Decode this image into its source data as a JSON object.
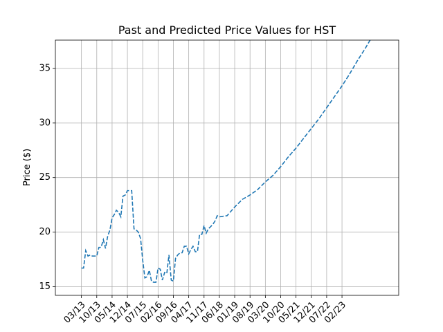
{
  "chart_data": {
    "type": "line",
    "title": "Past and Predicted Price Values for HST",
    "xlabel": "",
    "ylabel": "Price ($)",
    "ylim": [
      14.2,
      37.6
    ],
    "xlim": [
      -1.7,
      20.7
    ],
    "grid": true,
    "legend": "none",
    "line_color": "#1f77b4",
    "line_style": "dashed",
    "x_tick_labels": [
      "03/13",
      "10/13",
      "05/14",
      "12/14",
      "07/15",
      "02/16",
      "09/16",
      "04/17",
      "11/17",
      "06/18",
      "01/19",
      "08/19",
      "03/20",
      "10/20",
      "05/21",
      "12/21",
      "07/22",
      "02/23"
    ],
    "y_ticks": [
      15,
      20,
      25,
      30,
      35
    ],
    "series": [
      {
        "x": [
          0,
          0.14,
          0.28,
          0.43,
          0.57,
          0.71,
          0.86,
          1.0,
          1.14,
          1.28,
          1.43,
          1.57,
          1.71,
          1.86,
          2.0,
          2.14,
          2.28,
          2.43,
          2.57,
          2.71,
          2.86,
          3.0,
          3.14,
          3.28,
          3.43,
          3.57,
          3.71,
          3.86,
          4.0,
          4.14,
          4.28,
          4.43,
          4.57,
          4.71,
          4.86,
          5.0,
          5.14,
          5.28,
          5.43,
          5.57,
          5.71,
          5.86,
          6.0,
          6.14,
          6.28,
          6.43,
          6.57,
          6.71,
          6.86,
          7.0,
          7.14,
          7.28,
          7.43,
          7.57,
          7.71,
          7.86,
          8.0,
          8.14,
          8.28,
          8.43,
          8.57,
          8.71,
          8.86,
          9.0,
          9.5,
          10.0,
          10.5,
          11.0,
          11.5,
          12.0,
          12.5,
          13.0,
          13.5,
          14.0,
          14.5,
          15.0,
          15.5,
          16.0,
          16.5,
          17.0,
          17.5,
          18.0,
          18.5,
          19.0,
          19.5,
          20.0
        ],
        "values": [
          16.7,
          16.7,
          18.3,
          17.8,
          17.9,
          17.8,
          17.8,
          17.8,
          18.6,
          18.6,
          19.3,
          18.5,
          19.6,
          20.2,
          21.3,
          21.6,
          22.0,
          21.8,
          21.4,
          23.3,
          23.4,
          23.8,
          23.8,
          23.8,
          20.3,
          20.2,
          20.0,
          19.4,
          17.4,
          15.8,
          15.9,
          16.5,
          15.5,
          15.4,
          15.4,
          16.7,
          16.6,
          15.6,
          16.3,
          16.2,
          17.9,
          15.6,
          15.5,
          17.6,
          17.9,
          18.1,
          18.1,
          18.7,
          18.7,
          18.0,
          18.4,
          18.7,
          18.2,
          18.2,
          19.8,
          19.8,
          20.6,
          19.9,
          20.3,
          20.5,
          20.7,
          21.0,
          21.5,
          21.4,
          21.5,
          22.3,
          23.0,
          23.4,
          23.9,
          24.6,
          25.2,
          26.0,
          26.9,
          27.7,
          28.6,
          29.5,
          30.4,
          31.4,
          32.4,
          33.4,
          34.5,
          35.7,
          36.8,
          38.0,
          38.6,
          38.6
        ]
      }
    ]
  }
}
